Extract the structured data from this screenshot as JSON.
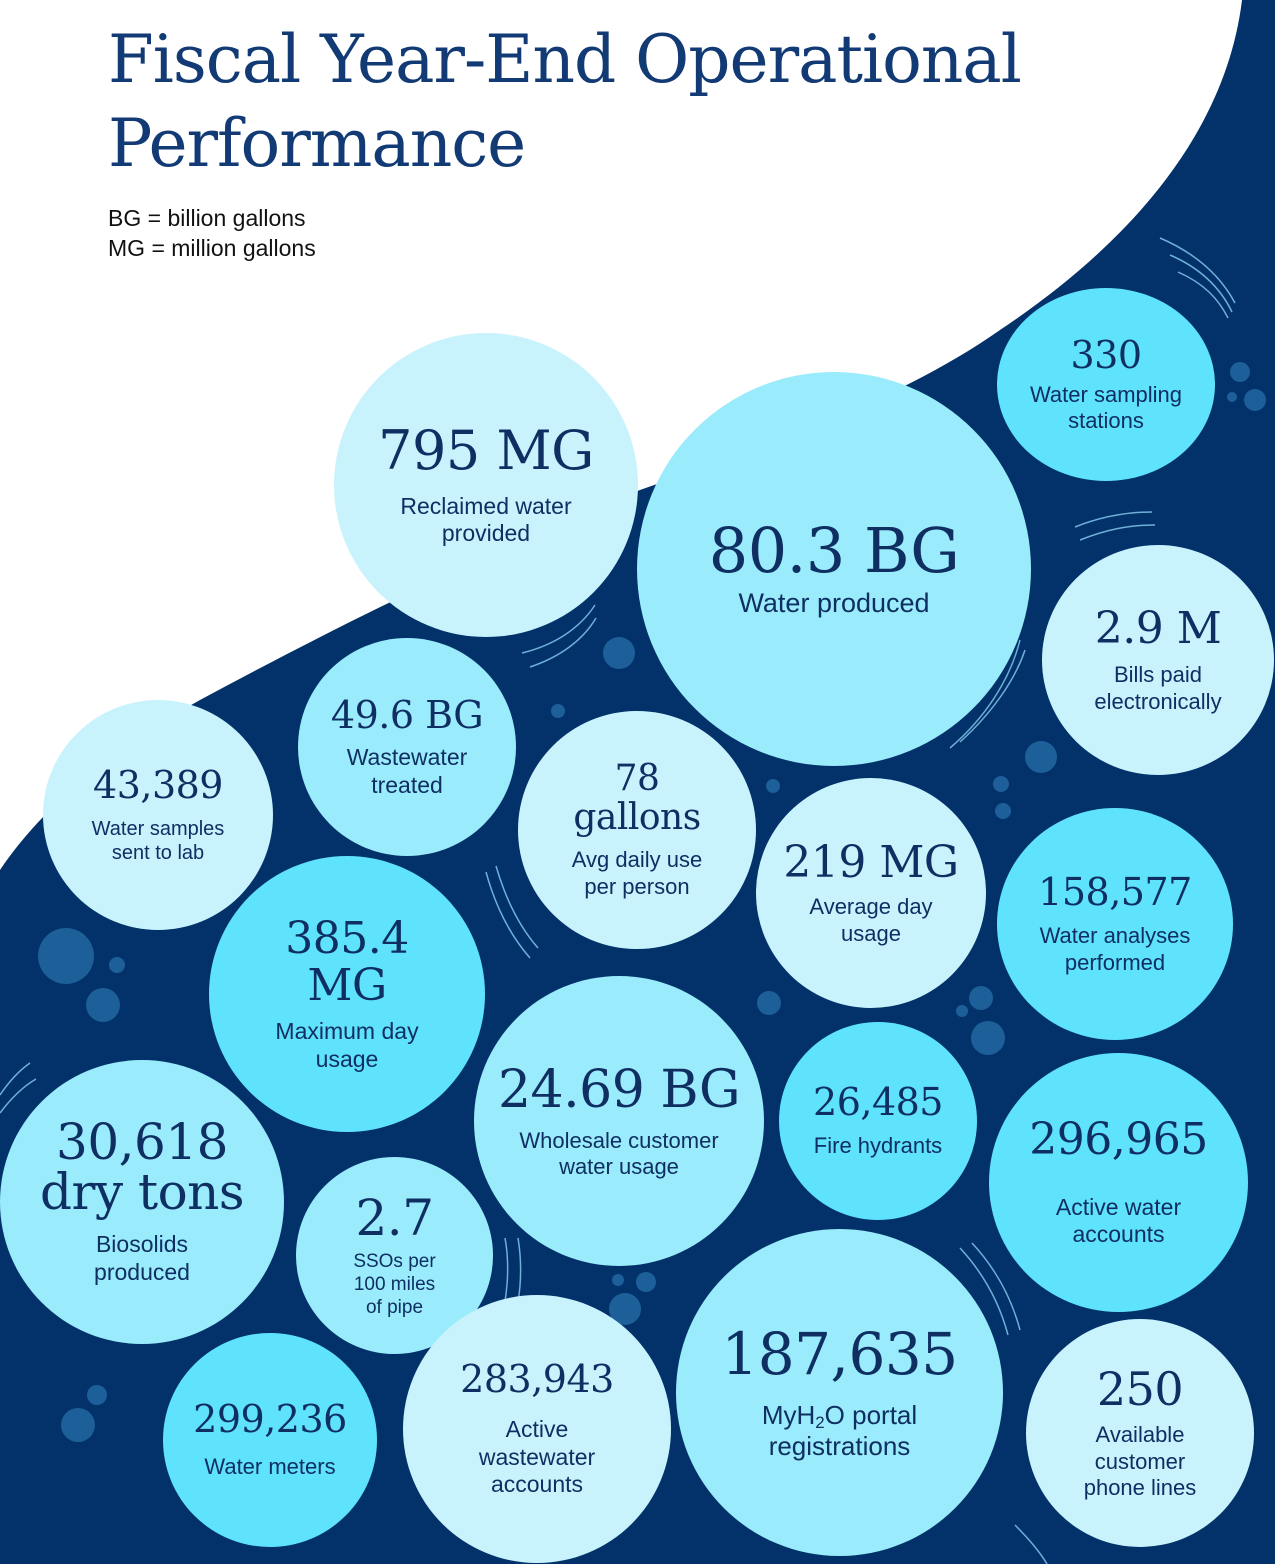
{
  "title": {
    "line1": "Fiscal Year-End Operational",
    "line2": "Performance"
  },
  "legend": {
    "bg": "BG = billion gallons",
    "mg": "MG = million gallons"
  },
  "colors": {
    "navy": "#03326a",
    "title_text": "#123a74",
    "circle_text": "#0f2f63",
    "circle_light": "#c8f3fd",
    "circle_medium": "#9aebfb",
    "circle_bright": "#5fe2fb"
  },
  "stats": {
    "water_sampling_stations": {
      "value": "330",
      "label": "Water sampling\nstations"
    },
    "reclaimed_water": {
      "value": "795 MG",
      "label": "Reclaimed water\nprovided"
    },
    "water_produced": {
      "value": "80.3 BG",
      "label": "Water produced"
    },
    "bills_paid": {
      "value": "2.9 M",
      "label": "Bills paid\nelectronically"
    },
    "wastewater_treated": {
      "value": "49.6 BG",
      "label": "Wastewater\ntreated"
    },
    "water_samples": {
      "value": "43,389",
      "label": "Water samples\nsent to lab"
    },
    "daily_use": {
      "value": "78\ngallons",
      "label": "Avg daily use\nper person"
    },
    "average_day": {
      "value": "219 MG",
      "label": "Average day\nusage"
    },
    "water_analyses": {
      "value": "158,577",
      "label": "Water analyses\nperformed"
    },
    "maximum_day": {
      "value": "385.4\nMG",
      "label": "Maximum day\nusage"
    },
    "wholesale": {
      "value": "24.69 BG",
      "label": "Wholesale customer\nwater usage"
    },
    "fire_hydrants": {
      "value": "26,485",
      "label": "Fire hydrants"
    },
    "biosolids": {
      "value": "30,618\ndry tons",
      "label": "Biosolids\nproduced"
    },
    "ssos": {
      "value": "2.7",
      "label": "SSOs per\n100 miles\nof pipe"
    },
    "active_water": {
      "value": "296,965",
      "label": "Active water\naccounts"
    },
    "water_meters": {
      "value": "299,236",
      "label": "Water meters"
    },
    "active_wastewater": {
      "value": "283,943",
      "label": "Active\nwastewater\naccounts"
    },
    "portal": {
      "value": "187,635",
      "label_pre": "MyH",
      "label_sub": "2",
      "label_post": "O portal\nregistrations"
    },
    "phone_lines": {
      "value": "250",
      "label": "Available\ncustomer\nphone lines"
    }
  }
}
